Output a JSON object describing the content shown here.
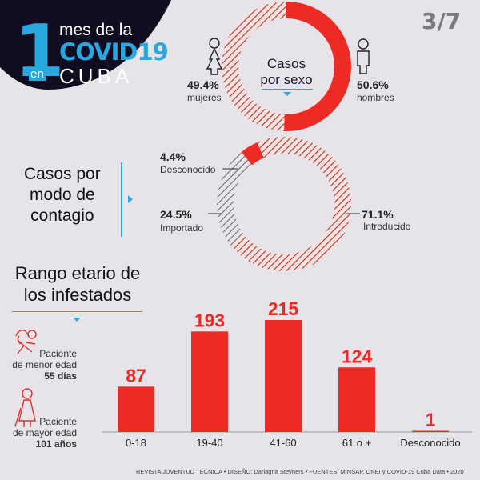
{
  "header": {
    "number": "1",
    "en": "en",
    "line1": "mes de la",
    "line2": "COVID19",
    "line3": "CUBA",
    "page_indicator": "3/7"
  },
  "colors": {
    "red": "#ee2a24",
    "blue": "#29a8e0",
    "dark": "#0f0d1f",
    "hatch_red": "#a8322e",
    "hatch_gray": "#666666",
    "background": "#e6e4e8"
  },
  "sexo": {
    "title_line1": "Casos",
    "title_line2": "por sexo",
    "female": {
      "pct": "49.4%",
      "label": "mujeres",
      "icon": "female-icon"
    },
    "male": {
      "pct": "50.6%",
      "label": "hombres",
      "icon": "male-icon"
    }
  },
  "contagio": {
    "title_line1": "Casos por",
    "title_line2": "modo de",
    "title_line3": "contagio",
    "desconocido": {
      "pct": "4.4%",
      "label": "Desconocido"
    },
    "importado": {
      "pct": "24.5%",
      "label": "Importado"
    },
    "introducido": {
      "pct": "71.1%",
      "label": "Introducido"
    }
  },
  "rango": {
    "title_line1": "Rango etario de",
    "title_line2": "los infestados",
    "menor": {
      "line1": "Paciente",
      "line2": "de menor edad",
      "value": "55 días",
      "icon": "baby-icon"
    },
    "mayor": {
      "line1": "Paciente",
      "line2": "de mayor edad",
      "value": "101 años",
      "icon": "elderly-icon"
    }
  },
  "footer": "REVISTA JUVENTUD TÉCNICA • DISEÑO: Dariagna Steyners •  FUENTES: MINSAP, ONEI y COVID-19 Cuba Data  •  2020",
  "chart_data": [
    {
      "type": "pie",
      "title": "Casos por sexo",
      "categories": [
        "mujeres",
        "hombres"
      ],
      "values": [
        49.4,
        50.6
      ],
      "unit": "%"
    },
    {
      "type": "pie",
      "title": "Casos por modo de contagio",
      "categories": [
        "Desconocido",
        "Importado",
        "Introducido"
      ],
      "values": [
        4.4,
        24.5,
        71.1
      ],
      "unit": "%"
    },
    {
      "type": "bar",
      "title": "Rango etario de los infestados",
      "categories": [
        "0-18",
        "19-40",
        "41-60",
        "61 o +",
        "Desconocido"
      ],
      "values": [
        87,
        193,
        215,
        124,
        1
      ],
      "xlabel": "",
      "ylabel": "",
      "ylim": [
        0,
        215
      ],
      "grid": false
    }
  ]
}
